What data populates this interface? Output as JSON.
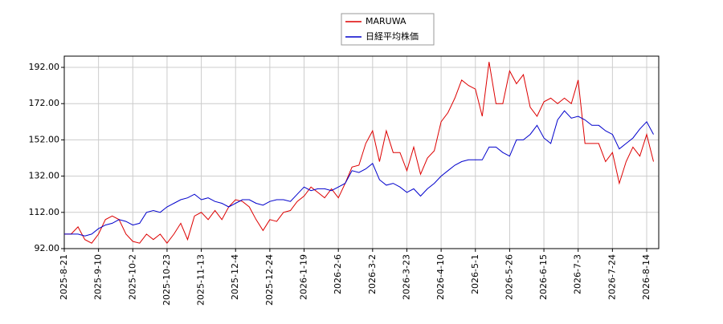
{
  "chart_data": {
    "type": "line",
    "categories": [
      "2025-8-21",
      null,
      null,
      null,
      null,
      "2025-9-10",
      null,
      null,
      null,
      null,
      "2025-10-2",
      null,
      null,
      null,
      null,
      "2025-10-23",
      null,
      null,
      null,
      null,
      "2025-11-13",
      null,
      null,
      null,
      null,
      "2025-12-4",
      null,
      null,
      null,
      null,
      "2025-12-24",
      null,
      null,
      null,
      null,
      "2026-1-19",
      null,
      null,
      null,
      null,
      "2026-2-6",
      null,
      null,
      null,
      null,
      "2026-3-2",
      null,
      null,
      null,
      null,
      "2026-3-23",
      null,
      null,
      null,
      null,
      "2026-4-10",
      null,
      null,
      null,
      null,
      "2026-5-1",
      null,
      null,
      null,
      null,
      "2026-5-26",
      null,
      null,
      null,
      null,
      "2026-6-15",
      null,
      null,
      null,
      null,
      "2026-7-3",
      null,
      null,
      null,
      null,
      "2026-7-24",
      null,
      null,
      null,
      null,
      "2026-8-14",
      null
    ],
    "series": [
      {
        "name": "MARUWA",
        "color": "#dd0000",
        "values": [
          100,
          100,
          104,
          97,
          95,
          100,
          108,
          110,
          108,
          100,
          96,
          95,
          100,
          97,
          100,
          95,
          100,
          106,
          97,
          110,
          112,
          108,
          113,
          108,
          115,
          119,
          118,
          115,
          108,
          102,
          108,
          107,
          112,
          113,
          118,
          121,
          126,
          123,
          120,
          125,
          120,
          128,
          137,
          138,
          150,
          157,
          140,
          157,
          145,
          145,
          135,
          148,
          133,
          142,
          146,
          162,
          167,
          175,
          185,
          182,
          180,
          165,
          195,
          172,
          172,
          190,
          183,
          188,
          170,
          165,
          173,
          175,
          172,
          175,
          172,
          185,
          150,
          150,
          150,
          140,
          145,
          128,
          140,
          148,
          143,
          155,
          140
        ]
      },
      {
        "name": "日経平均株価",
        "color": "#0000cc",
        "values": [
          100,
          100,
          100,
          99,
          100,
          103,
          105,
          106,
          108,
          107,
          105,
          106,
          112,
          113,
          112,
          115,
          117,
          119,
          120,
          122,
          119,
          120,
          118,
          117,
          115,
          117,
          119,
          119,
          117,
          116,
          118,
          119,
          119,
          118,
          122,
          126,
          124,
          125,
          125,
          124,
          126,
          128,
          135,
          134,
          136,
          139,
          130,
          127,
          128,
          126,
          123,
          125,
          121,
          125,
          128,
          132,
          135,
          138,
          140,
          141,
          141,
          141,
          148,
          148,
          145,
          143,
          152,
          152,
          155,
          160,
          153,
          150,
          163,
          168,
          164,
          165,
          163,
          160,
          160,
          157,
          155,
          147,
          150,
          153,
          158,
          162,
          155
        ]
      }
    ],
    "ylim": [
      92,
      198.2
    ],
    "yticks": [
      {
        "value": 92,
        "label": "92.00"
      },
      {
        "value": 112,
        "label": "112.00"
      },
      {
        "value": 132,
        "label": "132.00"
      },
      {
        "value": 152,
        "label": "152.00"
      },
      {
        "value": 172,
        "label": "172.00"
      },
      {
        "value": 192,
        "label": "192.00"
      }
    ],
    "grid": true,
    "legend": "top"
  }
}
